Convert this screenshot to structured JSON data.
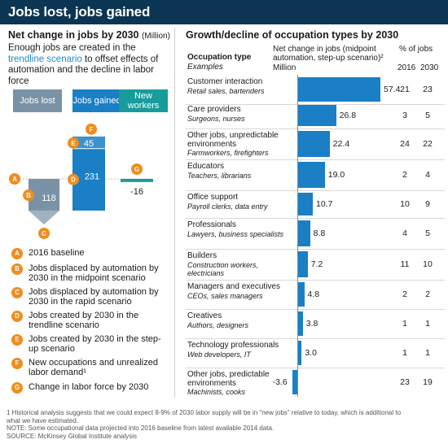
{
  "title": "Jobs lost, jobs gained",
  "left": {
    "heading": "Net change in jobs by 2030",
    "heading_unit": "(Million)",
    "desc_pre": "Enough jobs are created in the ",
    "desc_link": "trendline scenario",
    "desc_post": " to offset effects of automation and the decline in labor force",
    "col_lost": "Jobs lost",
    "col_gained": "Jobs gained",
    "col_new": "New workers",
    "waterfall": {
      "baseline_value": 0,
      "lost_value": 118,
      "gained_value": 231,
      "stepup_value": 45,
      "change_value": -16,
      "label_lost": "118",
      "label_gained": "231",
      "label_stepup": "45",
      "label_change": "-16"
    },
    "legend": [
      {
        "key": "A",
        "text": "2016 baseline"
      },
      {
        "key": "B",
        "text": "Jobs displaced by automation by 2030 in the midpoint scenario"
      },
      {
        "key": "C",
        "text": "Jobs displaced by automation by 2030 in the rapid scenario"
      },
      {
        "key": "D",
        "text": "Jobs created by 2030 in the trendline scenario"
      },
      {
        "key": "E",
        "text": "Jobs created by 2030 in the step-up scenario"
      },
      {
        "key": "F",
        "text": "New occupations and unrealized labor demand¹"
      },
      {
        "key": "G",
        "text": "Change in labor force by 2030"
      }
    ]
  },
  "right": {
    "heading": "Growth/decline of occupation types by 2030",
    "col_type": "Occupation type",
    "col_type_sub": "Examples",
    "col_net": "Net change in jobs (midpoint automation, step-up scenario)²",
    "col_net_unit": "Million",
    "col_pct": "% of jobs",
    "col_2016": "2016",
    "col_2030": "2030"
  },
  "chart_data": {
    "type": "bar",
    "title": "Growth/decline of occupation types by 2030",
    "xlabel": "Net change in jobs (midpoint automation, step-up scenario)",
    "unit": "Million",
    "categories": [
      "Customer interaction",
      "Care providers",
      "Other jobs, unpredictable environments",
      "Educators",
      "Office support",
      "Professionals",
      "Builders",
      "Managers and executives",
      "Creatives",
      "Technology professionals",
      "Other jobs, predictable environments"
    ],
    "examples": [
      "Retail sales, bartenders",
      "Surgeons, nurses",
      "Farmworkers, firefighters",
      "Teachers, librarians",
      "Payroll clerks, data entry",
      "Lawyers, business specialists",
      "Construction workers, electricians",
      "CEOs, sales managers",
      "Authors, designers",
      "Web developers, IT",
      "Machinists, cooks"
    ],
    "values": [
      57.4,
      26.8,
      22.4,
      19.0,
      10.7,
      8.8,
      7.2,
      4.8,
      3.8,
      3.0,
      -3.6
    ],
    "value_labels": [
      "57.4",
      "26.8",
      "22.4",
      "19.0",
      "10.7",
      "8.8",
      "7.2",
      "4.8",
      "3.8",
      "3.0",
      "-3.6"
    ],
    "pct_2016": [
      21,
      3,
      24,
      2,
      10,
      4,
      11,
      2,
      1,
      1,
      23
    ],
    "pct_2030": [
      23,
      5,
      22,
      4,
      9,
      5,
      10,
      2,
      1,
      1,
      19
    ],
    "xlim": [
      -3.6,
      57.4
    ]
  },
  "footnotes": [
    "1  Historical analysis suggests that we could expect 8-9% of 2030 labor supply will be in \"new jobs\" relative to today, which is additional to",
    "   what we have estimated.",
    "NOTE: Some occupational data projected into 2016 baseline from latest available 2014 data.",
    "SOURCE:  McKinsey Global Institute analysis"
  ],
  "colors": {
    "title_bg": "#0b3552",
    "bar": "#1a7fc4",
    "lost": "#7a92a6",
    "new": "#179c9c",
    "marker": "#f08c20",
    "link": "#1d8bc9"
  }
}
